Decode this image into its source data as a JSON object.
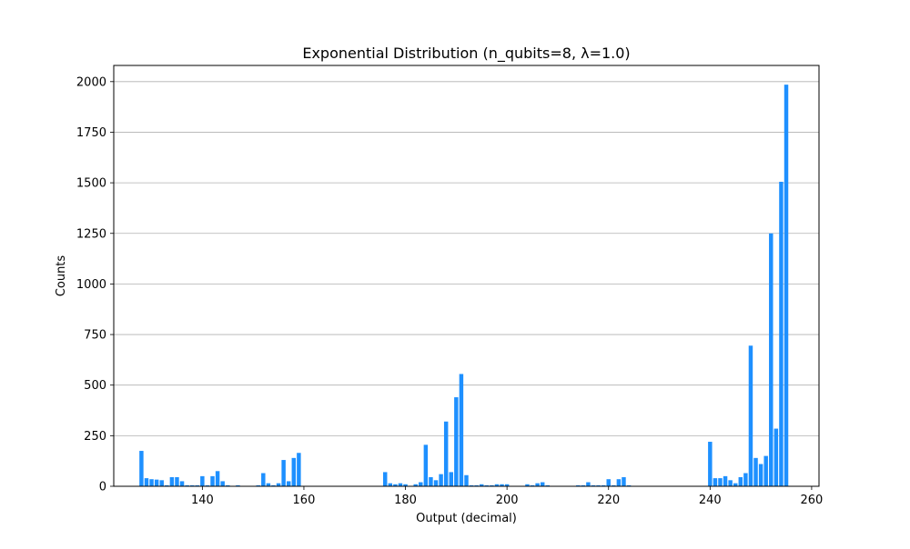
{
  "chart_data": {
    "type": "bar",
    "title": "Exponential Distribution (n_qubits=8, λ=1.0)",
    "xlabel": "Output (decimal)",
    "ylabel": "Counts",
    "xlim": [
      122.55,
      261.45
    ],
    "ylim": [
      0,
      2080
    ],
    "x_ticks": [
      140,
      160,
      180,
      200,
      220,
      240,
      260
    ],
    "y_ticks": [
      0,
      250,
      500,
      750,
      1000,
      1250,
      1500,
      1750,
      2000
    ],
    "grid": "y",
    "bar_color": "#1e90ff",
    "x": [
      128,
      129,
      130,
      131,
      132,
      133,
      134,
      135,
      136,
      137,
      138,
      139,
      140,
      141,
      142,
      143,
      144,
      145,
      147,
      151,
      152,
      153,
      154,
      155,
      156,
      157,
      158,
      159,
      176,
      177,
      178,
      179,
      180,
      182,
      183,
      184,
      185,
      186,
      187,
      188,
      189,
      190,
      191,
      192,
      193,
      194,
      195,
      196,
      197,
      198,
      199,
      200,
      204,
      205,
      206,
      207,
      208,
      214,
      215,
      216,
      217,
      218,
      219,
      220,
      221,
      222,
      223,
      224,
      240,
      241,
      242,
      243,
      244,
      245,
      246,
      247,
      248,
      249,
      250,
      251,
      252,
      253,
      254,
      255
    ],
    "values": [
      175,
      40,
      35,
      33,
      30,
      5,
      45,
      45,
      25,
      5,
      5,
      5,
      50,
      5,
      50,
      75,
      25,
      5,
      5,
      5,
      65,
      15,
      5,
      15,
      130,
      25,
      140,
      165,
      70,
      15,
      10,
      15,
      10,
      10,
      20,
      205,
      45,
      30,
      60,
      320,
      70,
      440,
      555,
      55,
      5,
      5,
      10,
      5,
      5,
      10,
      10,
      10,
      10,
      5,
      15,
      20,
      5,
      5,
      5,
      20,
      5,
      5,
      5,
      35,
      5,
      35,
      45,
      5,
      220,
      40,
      40,
      50,
      30,
      15,
      45,
      65,
      695,
      140,
      110,
      150,
      1250,
      285,
      1505,
      1985
    ]
  }
}
